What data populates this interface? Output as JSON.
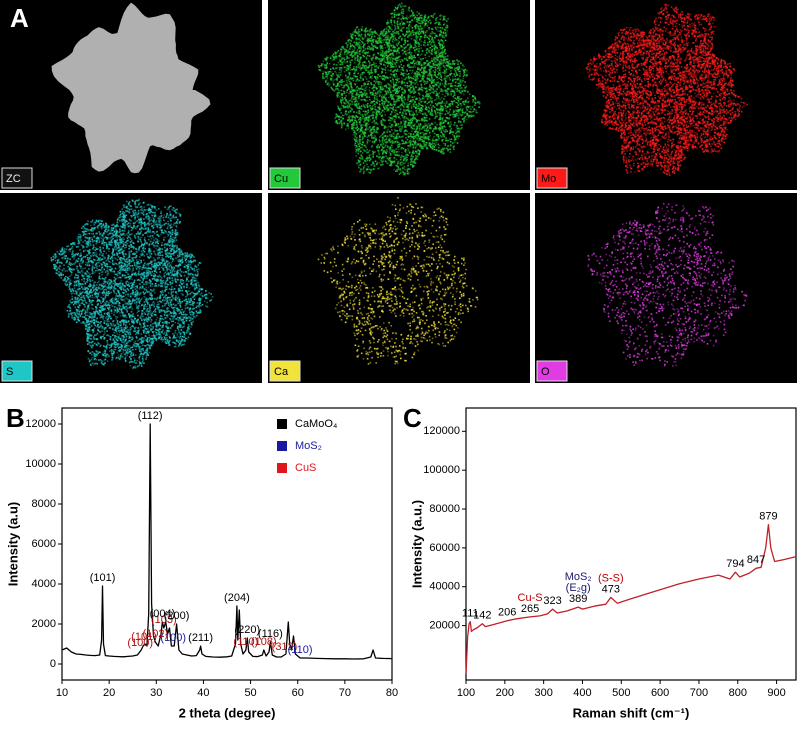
{
  "panel_labels": [
    "A",
    "B",
    "C"
  ],
  "maps": [
    {
      "label": "ZC",
      "color": "#cfcfcf"
    },
    {
      "label": "Cu",
      "color": "#22c93a"
    },
    {
      "label": "Mo",
      "color": "#ff1a1a"
    },
    {
      "label": "S",
      "color": "#1fc6c6"
    },
    {
      "label": "Ca",
      "color": "#f2e33a"
    },
    {
      "label": "O",
      "color": "#e13be6"
    }
  ],
  "chart_data": [
    {
      "type": "line",
      "x_label": "2 theta (degree)",
      "y_label": "Intensity (a.u)",
      "xlim": [
        10,
        80
      ],
      "xticks": [
        10,
        20,
        30,
        40,
        50,
        60,
        70,
        80
      ],
      "ylim": [
        -800,
        12800
      ],
      "yticks": [
        0,
        2000,
        4000,
        6000,
        8000,
        10000,
        12000
      ],
      "series": [
        {
          "name": "CaMoO₄",
          "color": "#000000",
          "x": [
            10,
            11,
            12,
            13,
            14,
            15,
            16,
            17,
            18,
            18.4,
            18.6,
            18.8,
            19.2,
            20,
            21,
            22,
            23,
            24,
            25,
            26,
            26.8,
            27.2,
            27.6,
            28.0,
            28.4,
            28.7,
            29.0,
            29.4,
            29.8,
            30.4,
            31.0,
            31.3,
            31.6,
            32.0,
            32.4,
            32.8,
            33.2,
            33.8,
            34.3,
            34.8,
            35.5,
            36.5,
            37.5,
            38.5,
            39.2,
            39.4,
            39.7,
            40.5,
            42,
            43.5,
            45,
            46,
            46.8,
            47.1,
            47.3,
            47.6,
            47.9,
            48.4,
            49.0,
            49.3,
            49.6,
            50.5,
            51.5,
            52.5,
            52.8,
            53.3,
            53.9,
            54.2,
            54.6,
            55.5,
            56.5,
            57.5,
            58.0,
            58.3,
            58.7,
            59.1,
            59.5,
            60.5,
            62,
            64,
            66,
            68,
            70,
            72,
            74,
            75.5,
            76,
            76.5,
            78,
            80
          ],
          "values": [
            700,
            800,
            600,
            500,
            480,
            450,
            430,
            420,
            450,
            1200,
            3900,
            1000,
            420,
            400,
            380,
            370,
            360,
            380,
            400,
            450,
            700,
            900,
            1000,
            900,
            2500,
            12000,
            3000,
            1400,
            1100,
            900,
            1500,
            2100,
            1800,
            2100,
            1500,
            1800,
            900,
            900,
            2000,
            700,
            500,
            450,
            400,
            420,
            700,
            900,
            500,
            380,
            350,
            340,
            360,
            400,
            1000,
            2900,
            1200,
            2700,
            1000,
            500,
            700,
            1300,
            600,
            380,
            370,
            450,
            700,
            400,
            600,
            1100,
            450,
            350,
            350,
            500,
            2100,
            1000,
            700,
            1400,
            500,
            300,
            300,
            280,
            270,
            260,
            260,
            250,
            260,
            350,
            700,
            300,
            280,
            270
          ]
        }
      ],
      "legend": [
        {
          "name": "CaMoO₄",
          "color": "#000000"
        },
        {
          "name": "MoS₂",
          "color": "#1a1aa0"
        },
        {
          "name": "CuS",
          "color": "#e0161b"
        }
      ],
      "legend_position": "top-right",
      "annotations": [
        {
          "text": "(101)",
          "x": 18.6,
          "color": "#000000"
        },
        {
          "text": "(100)",
          "x": 26.6,
          "color": "#b01010"
        },
        {
          "text": "(101)",
          "x": 27.4,
          "color": "#b01010"
        },
        {
          "text": "(112)",
          "x": 28.7,
          "color": "#000000"
        },
        {
          "text": "(102)",
          "x": 29.8,
          "color": "#b01010"
        },
        {
          "text": "(103)",
          "x": 31.6,
          "color": "#b01010"
        },
        {
          "text": "(004)",
          "x": 31.3,
          "color": "#000000"
        },
        {
          "text": "(100)",
          "x": 33.6,
          "color": "#1a1aa0"
        },
        {
          "text": "(200)",
          "x": 34.3,
          "color": "#000000"
        },
        {
          "text": "(211)",
          "x": 39.4,
          "color": "#000000"
        },
        {
          "text": "(204)",
          "x": 47.1,
          "color": "#000000"
        },
        {
          "text": "(110)",
          "x": 49.0,
          "color": "#b01010"
        },
        {
          "text": "(220)",
          "x": 49.3,
          "color": "#000000"
        },
        {
          "text": "(108)",
          "x": 52.8,
          "color": "#b01010"
        },
        {
          "text": "(116)",
          "x": 54.2,
          "color": "#000000"
        },
        {
          "text": "(312)",
          "x": 57.2,
          "color": "#b01010"
        },
        {
          "text": "(110)",
          "x": 60.5,
          "color": "#1a1aa0"
        }
      ]
    },
    {
      "type": "line",
      "x_label": "Raman shift (cm⁻¹)",
      "y_label": "Intensity (a.u.)",
      "xlim": [
        100,
        950
      ],
      "xticks": [
        100,
        200,
        300,
        400,
        500,
        600,
        700,
        800,
        900
      ],
      "ylim": [
        -8000,
        132000
      ],
      "yticks": [
        20000,
        40000,
        60000,
        80000,
        100000,
        120000
      ],
      "series": [
        {
          "color": "#c0202a",
          "x": [
            100,
            104,
            108,
            111,
            114,
            120,
            130,
            142,
            150,
            170,
            206,
            230,
            265,
            290,
            310,
            323,
            335,
            360,
            389,
            400,
            430,
            460,
            473,
            490,
            520,
            560,
            600,
            650,
            700,
            750,
            780,
            794,
            805,
            830,
            847,
            860,
            872,
            879,
            885,
            895,
            920,
            950
          ],
          "values": [
            -5000,
            14000,
            21000,
            22000,
            17000,
            18000,
            19000,
            21000,
            19500,
            20500,
            22500,
            23500,
            24500,
            25000,
            26000,
            28500,
            26500,
            27500,
            29500,
            28500,
            30000,
            31000,
            34500,
            31500,
            33500,
            36000,
            38500,
            41500,
            44000,
            46000,
            44000,
            47500,
            45000,
            47000,
            49500,
            50000,
            60000,
            72000,
            60000,
            53000,
            54000,
            55500
          ]
        }
      ],
      "annotations": [
        {
          "text": "111",
          "x": 111,
          "color": "#000000"
        },
        {
          "text": "142",
          "x": 142,
          "color": "#000000"
        },
        {
          "text": "206",
          "x": 206,
          "color": "#000000"
        },
        {
          "text": "265",
          "x": 265,
          "color": "#000000"
        },
        {
          "text": "Cu-S",
          "x": 265,
          "color": "#c00000"
        },
        {
          "text": "323",
          "x": 323,
          "color": "#000000"
        },
        {
          "text": "389",
          "x": 389,
          "color": "#000000"
        },
        {
          "text": "(E₂g)",
          "x": 389,
          "color": "#1a1a70"
        },
        {
          "text": "MoS₂",
          "x": 389,
          "color": "#1a1a70"
        },
        {
          "text": "473",
          "x": 473,
          "color": "#000000"
        },
        {
          "text": "(S-S)",
          "x": 473,
          "color": "#c00000"
        },
        {
          "text": "794",
          "x": 794,
          "color": "#000000"
        },
        {
          "text": "847",
          "x": 847,
          "color": "#000000"
        },
        {
          "text": "879",
          "x": 879,
          "color": "#000000"
        }
      ]
    }
  ]
}
